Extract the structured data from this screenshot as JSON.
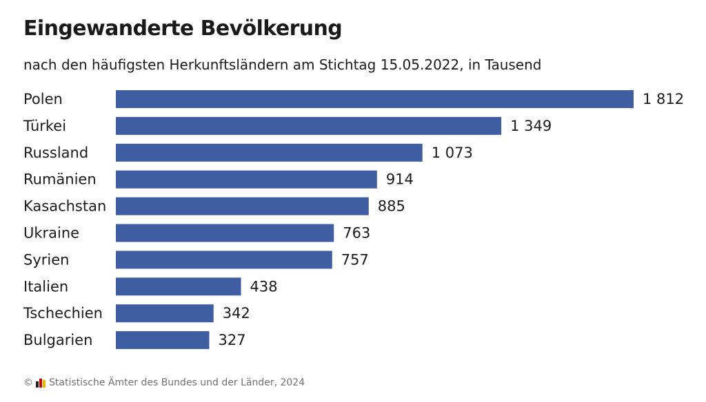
{
  "header": {
    "title": "Eingewanderte Bevölkerung",
    "subtitle": "nach den häufigsten Herkunftsländern am Stichtag 15.05.2022, in Tausend"
  },
  "footer": {
    "copyright": "©",
    "source": "Statistische Ämter des Bundes und der Länder, 2024",
    "logo_icon": "destatis-flag-bars-icon",
    "logo_colors": [
      "#222222",
      "#d00000",
      "#e8b800"
    ]
  },
  "colors": {
    "bar": "#3f5ea2",
    "text": "#1a1a1a",
    "footer_text": "#707070"
  },
  "chart_data": {
    "type": "bar",
    "orientation": "horizontal",
    "title": "Eingewanderte Bevölkerung",
    "subtitle": "nach den häufigsten Herkunftsländern am Stichtag 15.05.2022, in Tausend",
    "xlabel": "",
    "ylabel": "",
    "xlim": [
      0,
      1812
    ],
    "grid": false,
    "categories": [
      "Polen",
      "Türkei",
      "Russland",
      "Rumänien",
      "Kasachstan",
      "Ukraine",
      "Syrien",
      "Italien",
      "Tschechien",
      "Bulgarien"
    ],
    "values": [
      1812,
      1349,
      1073,
      914,
      885,
      763,
      757,
      438,
      342,
      327
    ],
    "value_labels": [
      "1 812",
      "1 349",
      "1 073",
      "914",
      "885",
      "763",
      "757",
      "438",
      "342",
      "327"
    ]
  }
}
